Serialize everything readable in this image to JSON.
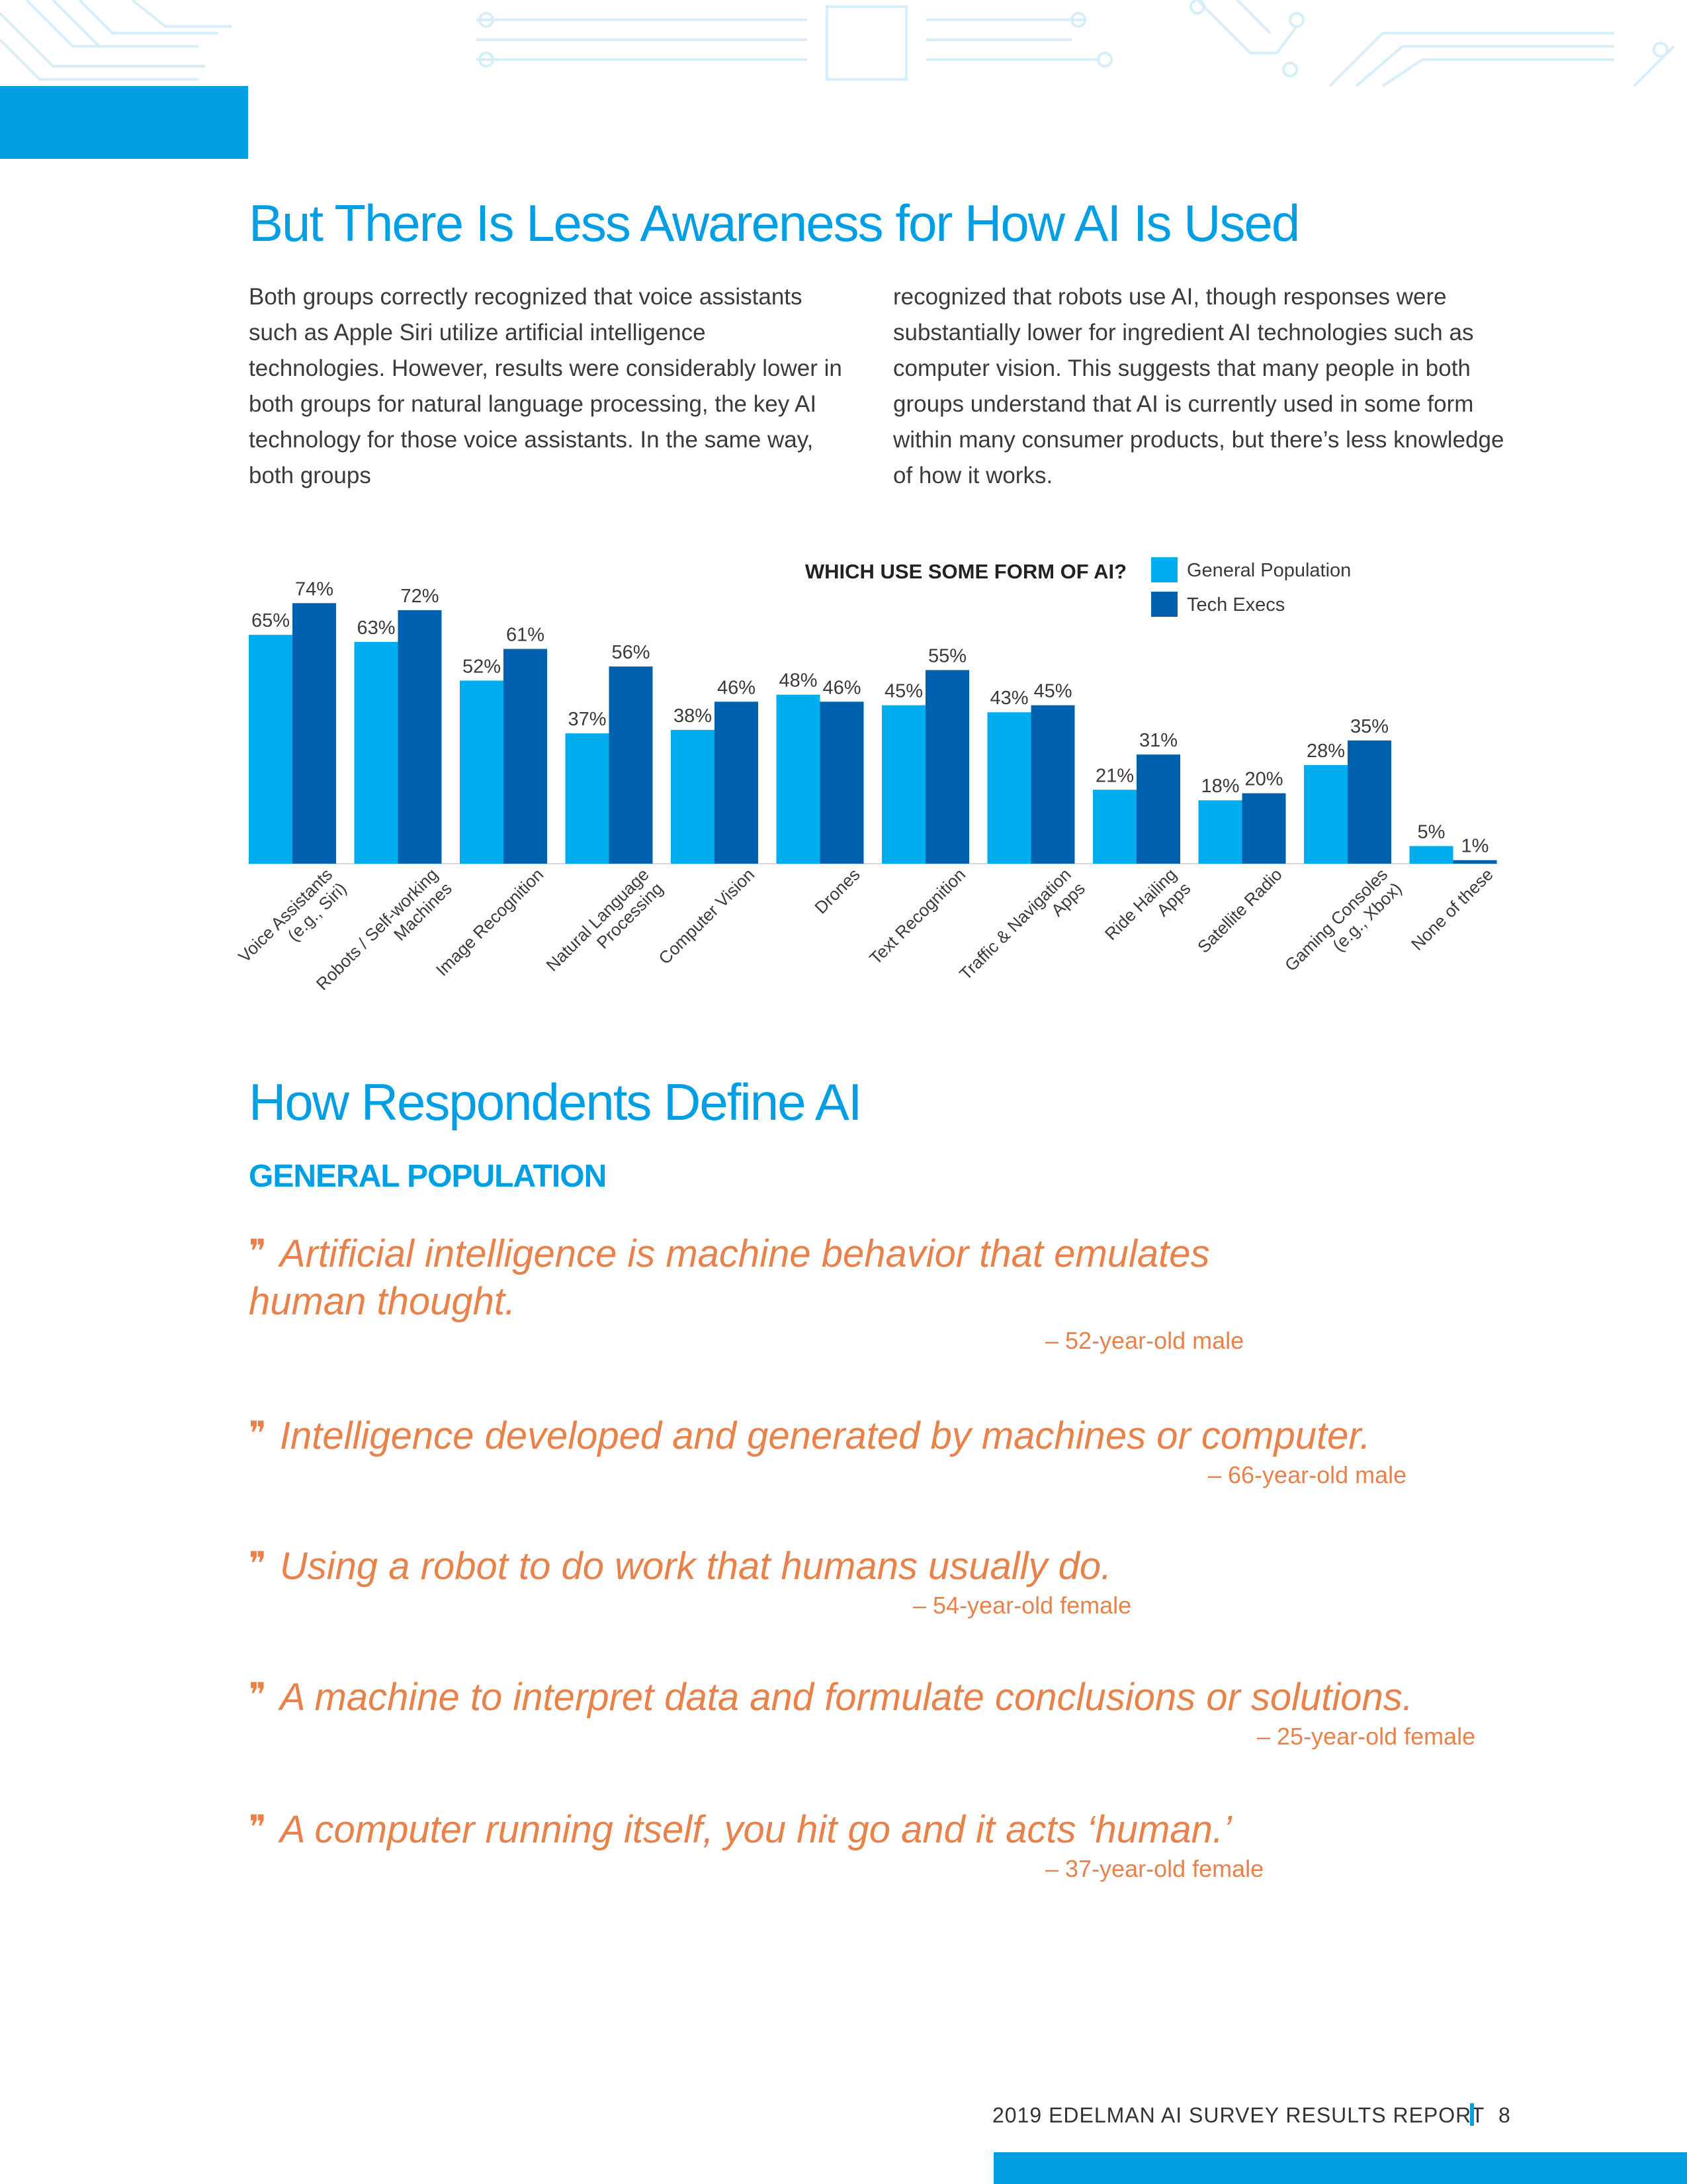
{
  "heading_1": "But There Is Less Awareness for How AI Is Used",
  "intro_col_1": "Both groups correctly recognized that voice assistants such as Apple Siri utilize artificial intelligence technologies. However, results were considerably lower in both groups for natural language processing, the key AI technology for those voice assistants. In the same way, both groups",
  "intro_col_2": "recognized that robots use AI, though responses were substantially lower for ingredient AI technologies such as computer vision. This suggests that many people in both groups understand that AI is currently used in some form within many consumer products, but there’s less knowledge of how it works.",
  "colors": {
    "accent": "#009fe3",
    "general_population": "#00aeef",
    "tech_execs": "#0062ae",
    "quote": "#e8824a"
  },
  "chart_data": {
    "type": "bar",
    "title": "WHICH USE SOME FORM OF AI?",
    "categories": [
      [
        "Voice Assistants",
        "(e.g., Siri)"
      ],
      [
        "Robots / Self-working",
        "Machines"
      ],
      [
        "Image Recognition"
      ],
      [
        "Natural Language",
        "Processing"
      ],
      [
        "Computer Vision"
      ],
      [
        "Drones"
      ],
      [
        "Text Recognition"
      ],
      [
        "Traffic & Navigation",
        "Apps"
      ],
      [
        "Ride Hailing",
        "Apps"
      ],
      [
        "Satellite Radio"
      ],
      [
        "Gaming Consoles",
        "(e.g., Xbox)"
      ],
      [
        "None of these"
      ]
    ],
    "series": [
      {
        "name": "General Population",
        "color": "#00aeef",
        "values": [
          65,
          63,
          52,
          37,
          38,
          48,
          45,
          43,
          21,
          18,
          28,
          5
        ]
      },
      {
        "name": "Tech Execs",
        "color": "#0062ae",
        "values": [
          74,
          72,
          61,
          56,
          46,
          46,
          55,
          45,
          31,
          20,
          35,
          1
        ]
      }
    ],
    "value_suffix": "%",
    "legend": "top-right",
    "ylim": [
      0,
      80
    ],
    "grid": false
  },
  "heading_2": "How Respondents Define AI",
  "subheading": "GENERAL POPULATION",
  "quotes": [
    {
      "text": "Artificial intelligence is machine behavior that emulates human thought.",
      "attribution": "– 52-year-old male"
    },
    {
      "text": "Intelligence developed and generated by machines or computer.",
      "attribution": "– 66-year-old male"
    },
    {
      "text": "Using a robot to do work that humans usually do.",
      "attribution": "– 54-year-old female"
    },
    {
      "text": "A machine to interpret data and formulate conclusions or solutions.",
      "attribution": "– 25-year-old female"
    },
    {
      "text": "A computer running itself, you hit go and it acts ‘human.’",
      "attribution": "– 37-year-old female"
    }
  ],
  "quote_mark": "❞",
  "footer": {
    "report_title": "2019 EDELMAN AI SURVEY RESULTS REPORT",
    "page_number": "8"
  }
}
